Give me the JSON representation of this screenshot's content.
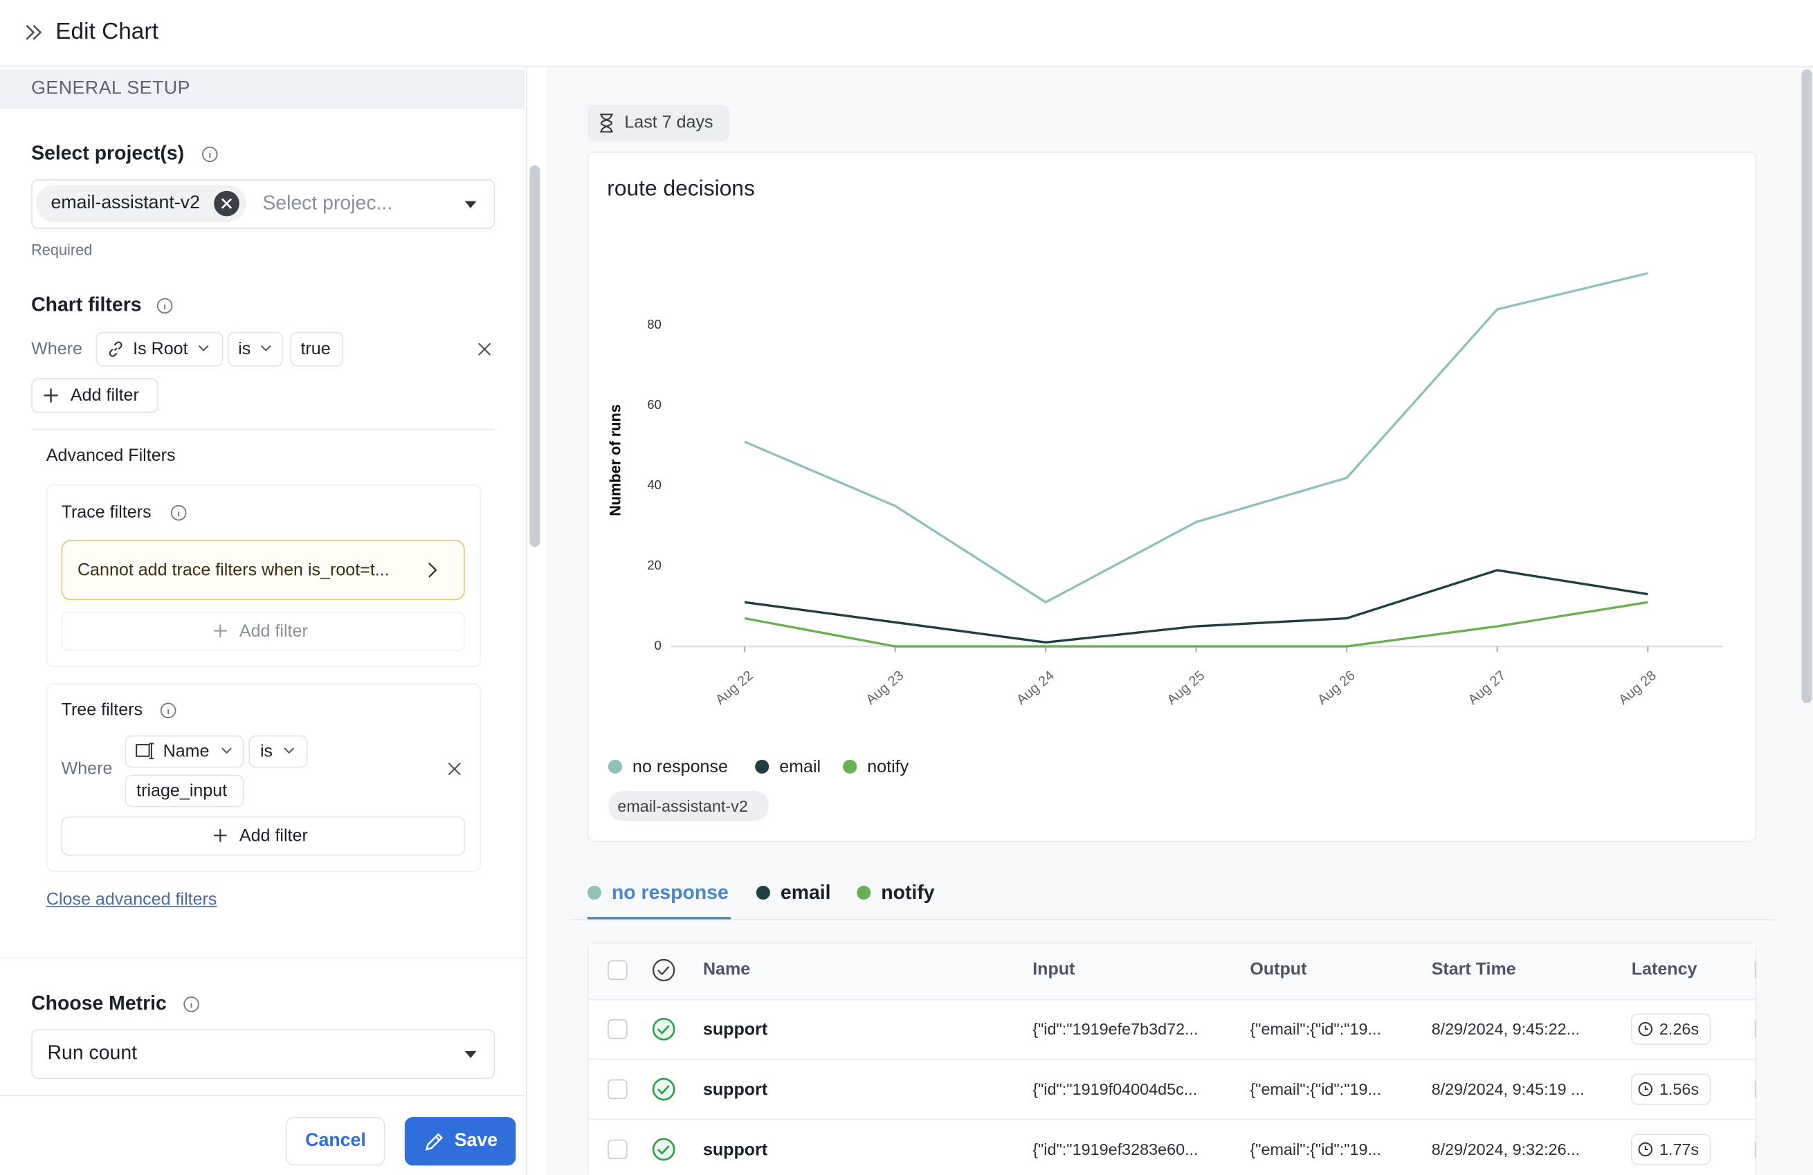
{
  "header": {
    "title": "Edit Chart"
  },
  "sidebar": {
    "section": "GENERAL SETUP",
    "project_label": "Select project(s)",
    "project_chip": "email-assistant-v2",
    "project_placeholder": "Select projec...",
    "required": "Required",
    "chart_filters_label": "Chart filters",
    "filter": {
      "where": "Where",
      "field": "Is Root",
      "op": "is",
      "value": "true"
    },
    "add_filter": "Add filter",
    "advanced_title": "Advanced Filters",
    "trace_filters_label": "Trace filters",
    "trace_warning": "Cannot add trace filters when is_root=t...",
    "trace_add_filter": "Add filter",
    "tree_filters_label": "Tree filters",
    "tree_filter": {
      "where": "Where",
      "field": "Name",
      "op": "is",
      "value": "triage_input"
    },
    "tree_add_filter": "Add filter",
    "close_advanced": "Close advanced filters",
    "metric_label": "Choose Metric",
    "metric_value": "Run count",
    "cancel": "Cancel",
    "save": "Save"
  },
  "time_range": "Last 7 days",
  "chart_data": {
    "type": "line",
    "title": "route decisions",
    "y_label": "Number of runs",
    "categories": [
      "Aug 22",
      "Aug 23",
      "Aug 24",
      "Aug 25",
      "Aug 26",
      "Aug 27",
      "Aug 28"
    ],
    "series": [
      {
        "name": "no response",
        "color": "#8fc1b9",
        "values": [
          51,
          35,
          11,
          31,
          42,
          84,
          93
        ]
      },
      {
        "name": "email",
        "color": "#1f3f3f",
        "values": [
          11,
          6,
          1,
          5,
          7,
          19,
          13
        ]
      },
      {
        "name": "notify",
        "color": "#6aaf52",
        "values": [
          7,
          0,
          0,
          0,
          0,
          5,
          11
        ]
      }
    ],
    "ylim": [
      0,
      100
    ],
    "yticks": [
      0,
      20,
      40,
      60,
      80
    ],
    "grid": false,
    "project_tag": "email-assistant-v2"
  },
  "table": {
    "columns": [
      "Name",
      "Input",
      "Output",
      "Start Time",
      "Latency"
    ],
    "rows": [
      [
        "support",
        "{\"id\":\"1919efe7b3d72...",
        "{\"email\":{\"id\":\"19...",
        "8/29/2024, 9:45:22...",
        "2.26s"
      ],
      [
        "support",
        "{\"id\":\"1919f04004d5c...",
        "{\"email\":{\"id\":\"19...",
        "8/29/2024, 9:45:19 ...",
        "1.56s"
      ],
      [
        "support",
        "{\"id\":\"1919ef3283e60...",
        "{\"email\":{\"id\":\"19...",
        "8/29/2024, 9:32:26...",
        "1.77s"
      ]
    ]
  }
}
